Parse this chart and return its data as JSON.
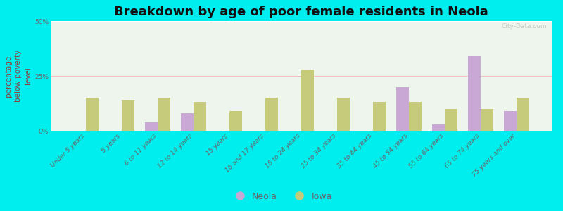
{
  "title": "Breakdown by age of poor female residents in Neola",
  "ylabel": "percentage\nbelow poverty\nlevel",
  "categories": [
    "Under 5 years",
    "5 years",
    "6 to 11 years",
    "12 to 14 years",
    "15 years",
    "16 and 17 years",
    "18 to 24 years",
    "25 to 34 years",
    "35 to 44 years",
    "45 to 54 years",
    "55 to 64 years",
    "65 to 74 years",
    "75 years and over"
  ],
  "neola_values": [
    0,
    0,
    4.0,
    8.0,
    0,
    0,
    0,
    0,
    0,
    20.0,
    3.0,
    34.0,
    9.0
  ],
  "iowa_values": [
    15.0,
    14.0,
    15.0,
    13.0,
    9.0,
    15.0,
    28.0,
    15.0,
    13.0,
    13.0,
    10.0,
    10.0,
    15.0
  ],
  "neola_color": "#c9a8d5",
  "iowa_color": "#c5cb7a",
  "ylim": [
    0,
    50
  ],
  "yticks": [
    0,
    25,
    50
  ],
  "ytick_labels": [
    "0%",
    "25%",
    "50%"
  ],
  "plot_bg_top": "#eaf5ea",
  "plot_bg_bottom": "#f5faf0",
  "outer_background": "#00eeee",
  "bar_width": 0.35,
  "title_fontsize": 13,
  "axis_label_fontsize": 7.5,
  "tick_fontsize": 6.5,
  "legend_fontsize": 9,
  "watermark_text": "City-Data.com",
  "watermark_color": "#bbbbbb",
  "hline_color": "#f0c0c0",
  "ylabel_color": "#884444",
  "tick_color": "#666666"
}
